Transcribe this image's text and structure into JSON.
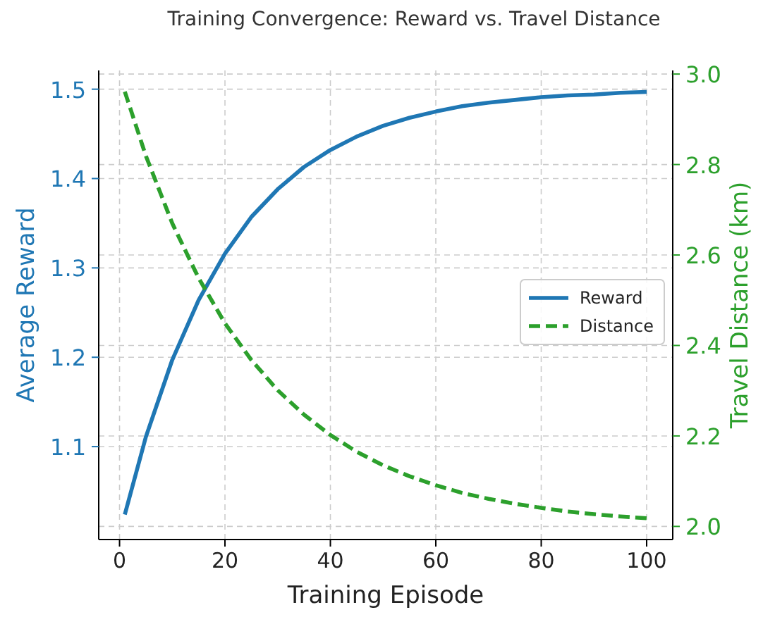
{
  "chart_data": {
    "type": "line",
    "title": "Training Convergence: Reward vs. Travel Distance",
    "xlabel": "Training Episode",
    "ylabel": "Average Reward",
    "y2label": "Travel Distance (km)",
    "x": [
      1,
      5,
      10,
      15,
      20,
      25,
      30,
      35,
      40,
      45,
      50,
      55,
      60,
      65,
      70,
      75,
      80,
      85,
      90,
      95,
      100
    ],
    "series": [
      {
        "name": "Reward",
        "color": "#1f77b4",
        "line_style": "solid",
        "values": [
          1.024,
          1.111,
          1.197,
          1.264,
          1.316,
          1.357,
          1.388,
          1.413,
          1.432,
          1.447,
          1.459,
          1.468,
          1.475,
          1.481,
          1.485,
          1.488,
          1.491,
          1.493,
          1.494,
          1.496,
          1.497
        ]
      },
      {
        "name": "Distance",
        "color": "#2ca02c",
        "line_style": "dashed",
        "axis": "y2",
        "values": [
          2.961,
          2.819,
          2.67,
          2.549,
          2.449,
          2.368,
          2.301,
          2.247,
          2.202,
          2.165,
          2.135,
          2.111,
          2.091,
          2.074,
          2.061,
          2.05,
          2.041,
          2.033,
          2.027,
          2.022,
          2.018
        ]
      }
    ],
    "xlim": [
      -3.95,
      104.95
    ],
    "xticks": [
      0,
      20,
      40,
      60,
      80,
      100
    ],
    "ylim": [
      0.996,
      1.521
    ],
    "yticks": [
      1.1,
      1.2,
      1.3,
      1.4,
      1.5
    ],
    "y2lim": [
      1.971,
      3.008
    ],
    "y2ticks": [
      {
        "value": 2,
        "label": "2.0"
      },
      2.2,
      2.4,
      2.6,
      2.8,
      {
        "value": 3,
        "label": "3.0"
      }
    ],
    "grid": true,
    "legend": "right"
  }
}
